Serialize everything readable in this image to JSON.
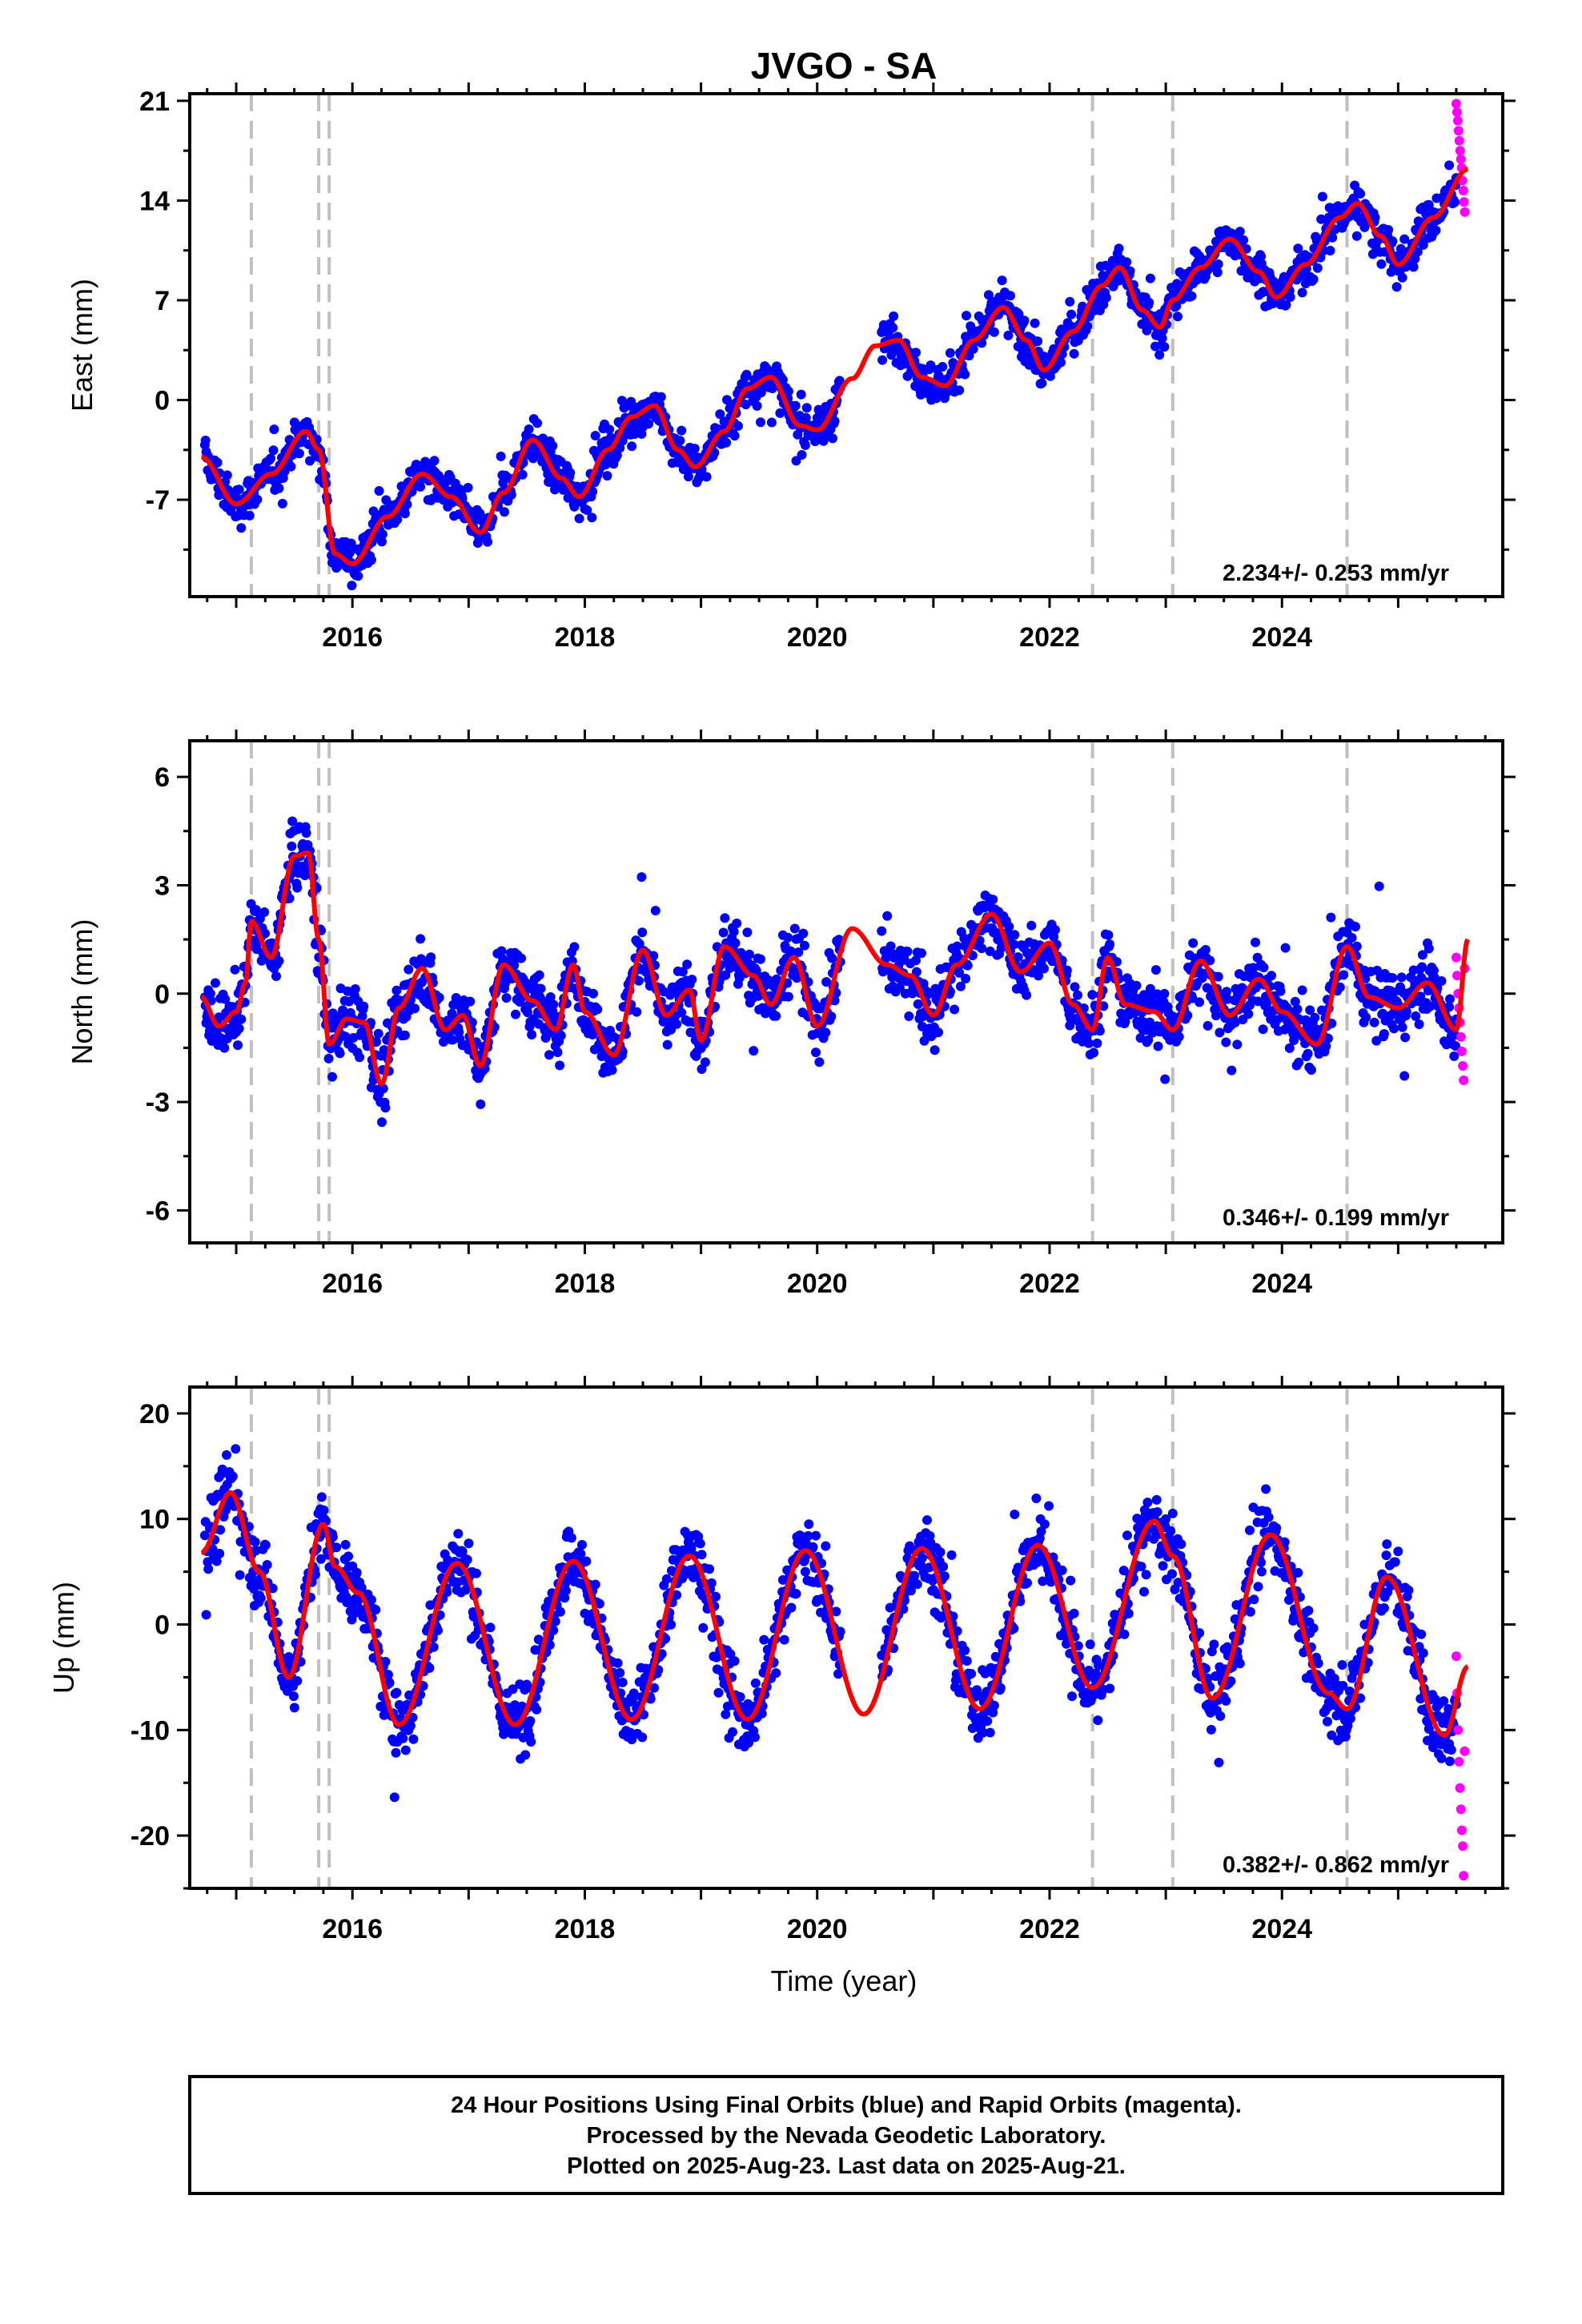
{
  "title": "JVGO - SA",
  "xlabel": "Time (year)",
  "footer": [
    "24 Hour Positions Using Final Orbits (blue) and Rapid Orbits (magenta).",
    "Processed by the Nevada Geodetic Laboratory.",
    "Plotted on 2025-Aug-23. Last data on 2025-Aug-21."
  ],
  "colors": {
    "final": "#0000ff",
    "rapid": "#ff00ff",
    "model": "#ff0000",
    "break": "#c0c0c0"
  },
  "chart_data": [
    {
      "type": "scatter",
      "name": "east",
      "ylabel": "East (mm)",
      "xlim": [
        2014.6,
        2025.9
      ],
      "ylim": [
        -13.8,
        21.5
      ],
      "yticks": [
        -7,
        0,
        7,
        14,
        21
      ],
      "yminor": 3.5,
      "xticks": [
        2016,
        2018,
        2020,
        2022,
        2024
      ],
      "rate_text": "2.234+/- 0.253 mm/yr",
      "breaks": [
        2015.13,
        2015.71,
        2015.8,
        2022.37,
        2023.06,
        2024.56
      ],
      "data_start": 2014.73,
      "data_end": 2025.58,
      "rapid_start": 2025.5,
      "model": {
        "x": [
          2014.7,
          2015.0,
          2015.3,
          2015.6,
          2015.71,
          2015.85,
          2016.0,
          2016.3,
          2016.6,
          2016.85,
          2017.1,
          2017.3,
          2017.55,
          2017.8,
          2017.95,
          2018.2,
          2018.4,
          2018.6,
          2018.8,
          2018.95,
          2019.2,
          2019.4,
          2019.6,
          2019.85,
          2020.0,
          2020.3,
          2020.5,
          2020.7,
          2020.9,
          2021.1,
          2021.35,
          2021.6,
          2021.8,
          2021.95,
          2022.2,
          2022.45,
          2022.6,
          2022.8,
          2022.95,
          2023.06,
          2023.3,
          2023.55,
          2023.8,
          2023.95,
          2024.2,
          2024.5,
          2024.65,
          2024.85,
          2025.0,
          2025.3,
          2025.6
        ],
        "y": [
          -4,
          -7.3,
          -5.2,
          -2.2,
          -3.5,
          -10.8,
          -11.5,
          -8.2,
          -5.2,
          -6.8,
          -9.3,
          -6.5,
          -2.8,
          -5.5,
          -6.8,
          -3.5,
          -1.2,
          -0.4,
          -3.5,
          -4.7,
          -2.2,
          0.8,
          1.6,
          -1.8,
          -2.1,
          1.5,
          3.8,
          4.2,
          1.6,
          1.0,
          4.2,
          6.5,
          4.2,
          2.1,
          4.8,
          8.0,
          9.3,
          6.3,
          5.1,
          7.0,
          9.3,
          11.3,
          9.0,
          7.2,
          9.5,
          12.8,
          13.8,
          11.5,
          9.5,
          12.8,
          16.2
        ]
      },
      "noise": 1.6,
      "rapid_y": [
        20.8,
        20.2,
        19.6,
        18.9,
        18.2,
        17.5,
        16.9,
        16.3,
        15.4,
        14.7,
        13.9,
        13.2
      ]
    },
    {
      "type": "scatter",
      "name": "north",
      "ylabel": "North (mm)",
      "xlim": [
        2014.6,
        2025.9
      ],
      "ylim": [
        -6.9,
        7.0
      ],
      "yticks": [
        -6,
        -3,
        0,
        3,
        6
      ],
      "yminor": 1.5,
      "xticks": [
        2016,
        2018,
        2020,
        2022,
        2024
      ],
      "rate_text": "0.346+/- 0.199 mm/yr",
      "breaks": [
        2015.13,
        2015.71,
        2015.8,
        2022.37,
        2023.06,
        2024.56
      ],
      "data_start": 2014.73,
      "data_end": 2025.58,
      "rapid_start": 2025.5,
      "model": {
        "x": [
          2014.7,
          2014.85,
          2015.0,
          2015.08,
          2015.13,
          2015.3,
          2015.5,
          2015.62,
          2015.71,
          2015.8,
          2015.95,
          2016.1,
          2016.25,
          2016.4,
          2016.6,
          2016.8,
          2016.95,
          2017.1,
          2017.3,
          2017.55,
          2017.75,
          2017.9,
          2018.0,
          2018.25,
          2018.5,
          2018.7,
          2018.9,
          2019.0,
          2019.2,
          2019.45,
          2019.6,
          2019.8,
          2020.0,
          2020.3,
          2020.6,
          2020.8,
          2021.0,
          2021.2,
          2021.5,
          2021.75,
          2022.0,
          2022.2,
          2022.37,
          2022.5,
          2022.65,
          2022.9,
          2023.06,
          2023.3,
          2023.55,
          2023.8,
          2024.0,
          2024.3,
          2024.56,
          2024.75,
          2025.0,
          2025.25,
          2025.5,
          2025.6
        ],
        "y": [
          -0.1,
          -0.9,
          -0.5,
          0.3,
          2.0,
          1.0,
          3.8,
          3.9,
          1.5,
          -1.4,
          -0.7,
          -0.8,
          -2.5,
          -0.4,
          0.7,
          -1.0,
          -0.6,
          -2.0,
          0.8,
          -0.2,
          -1.0,
          0.8,
          -0.5,
          -1.7,
          1.2,
          -0.6,
          0.1,
          -1.3,
          1.3,
          0.5,
          -0.3,
          1.0,
          -0.9,
          1.8,
          0.8,
          0.5,
          -0.6,
          0.8,
          2.2,
          0.6,
          1.4,
          -0.3,
          -1.0,
          1.0,
          -0.3,
          -0.5,
          -1.0,
          0.9,
          -0.6,
          0.4,
          -0.5,
          -1.4,
          1.3,
          -0.1,
          -0.4,
          0.3,
          -1.0,
          1.5
        ]
      },
      "noise": 1.0,
      "rapid_y": [
        1.0,
        0.5,
        0.0,
        -0.4,
        -0.8,
        -1.2,
        -1.6,
        -2.0,
        -2.4,
        0.7
      ]
    },
    {
      "type": "scatter",
      "name": "up",
      "ylabel": "Up (mm)",
      "xlim": [
        2014.6,
        2025.9
      ],
      "ylim": [
        -25.0,
        22.5
      ],
      "yticks": [
        -20,
        -10,
        0,
        10,
        20
      ],
      "yminor": 5,
      "xticks": [
        2016,
        2018,
        2020,
        2022,
        2024
      ],
      "rate_text": "0.382+/- 0.862 mm/yr",
      "breaks": [
        2015.13,
        2015.71,
        2015.8,
        2022.37,
        2023.06,
        2024.56
      ],
      "data_start": 2014.73,
      "data_end": 2025.58,
      "rapid_start": 2025.5,
      "model": {
        "x": [
          2014.7,
          2014.95,
          2015.2,
          2015.45,
          2015.75,
          2015.85,
          2016.05,
          2016.4,
          2016.9,
          2017.4,
          2017.9,
          2018.4,
          2018.9,
          2019.4,
          2019.9,
          2020.4,
          2020.9,
          2021.4,
          2021.9,
          2022.37,
          2022.9,
          2023.06,
          2023.4,
          2023.9,
          2024.4,
          2024.56,
          2024.9,
          2025.4,
          2025.6
        ],
        "y": [
          6.8,
          12.5,
          5.0,
          -5.0,
          9.5,
          5.5,
          3.0,
          -9.5,
          5.8,
          -9.5,
          6.0,
          -9.0,
          6.5,
          -9.0,
          7.0,
          -8.5,
          7.2,
          -8.0,
          7.5,
          -6.0,
          9.8,
          6.5,
          -7.0,
          8.5,
          -6.5,
          -8.0,
          4.5,
          -10.5,
          -4.0
        ]
      },
      "noise": 3.6,
      "rapid_y": [
        -3.0,
        -6.5,
        -10.0,
        -13.0,
        -15.5,
        -17.5,
        -19.5,
        -21.0,
        -23.8,
        -12.0
      ]
    }
  ]
}
